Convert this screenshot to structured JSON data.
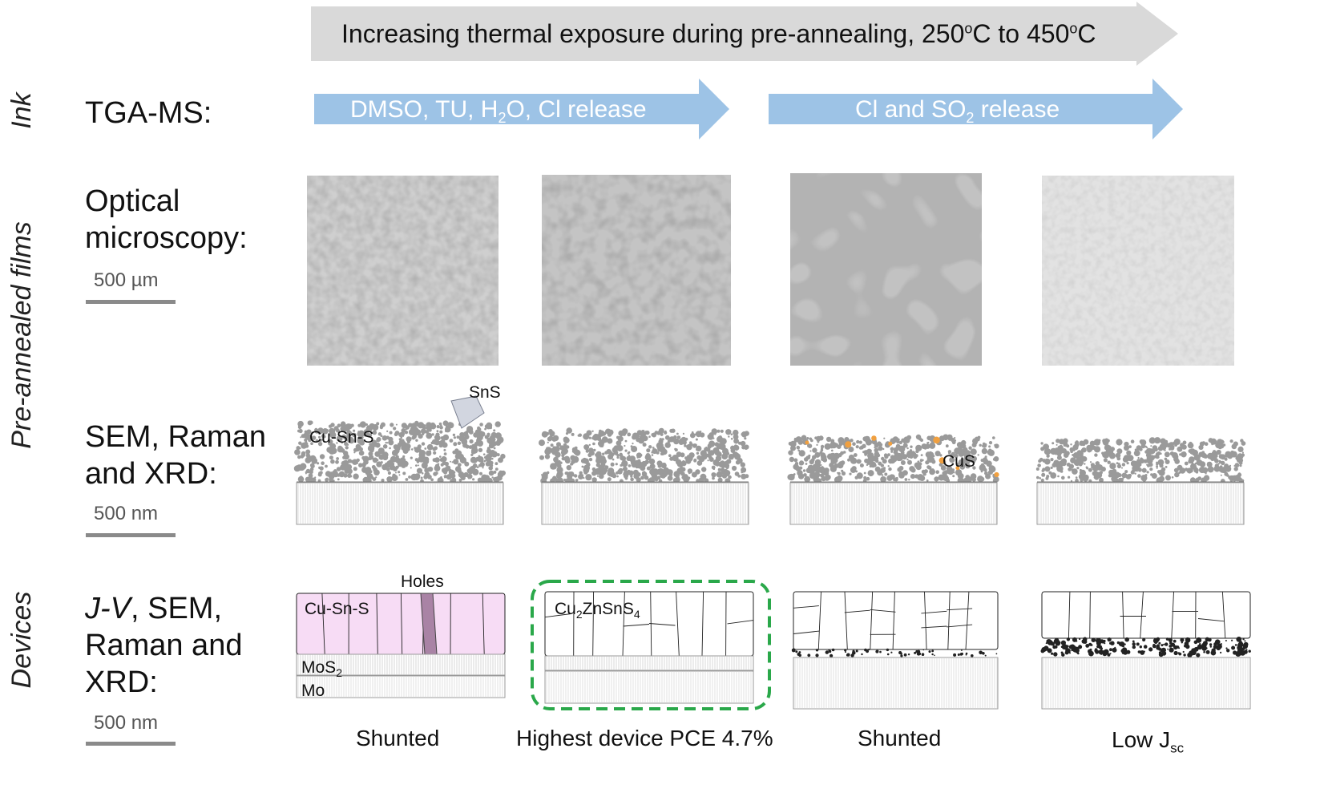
{
  "top_arrow": {
    "text": "Increasing thermal exposure during pre-annealing, 250",
    "sup1": "o",
    "mid": "C to 450",
    "sup2": "o",
    "end": "C"
  },
  "side_labels": {
    "ink": "Ink",
    "films": "Pre-annealed films",
    "devices": "Devices"
  },
  "tga": {
    "label": "TGA-MS:",
    "arrow1": {
      "pre": "DMSO, TU, H",
      "sub": "2",
      "post": "O, Cl release"
    },
    "arrow2": {
      "pre": "Cl and SO",
      "sub": "2",
      "post": " release"
    }
  },
  "optical": {
    "label_line1": "Optical",
    "label_line2": "microscopy:",
    "scale": "500 µm"
  },
  "sem": {
    "label_line1": "SEM, Raman",
    "label_line2": "and XRD:",
    "scale": "500 nm",
    "ann_sns": "SnS",
    "ann_cusns": "Cu-Sn-S",
    "ann_cus": "CuS"
  },
  "devices": {
    "label_italic": "J-V",
    "label_line1_rest": ", SEM,",
    "label_line2": "Raman and",
    "label_line3": "XRD:",
    "scale": "500 nm",
    "ann_holes": "Holes",
    "ann_cusns": "Cu-Sn-S",
    "ann_mos": "MoS",
    "ann_mos_sub": "2",
    "ann_mo": "Mo",
    "czts": {
      "a": "Cu",
      "b": "2",
      "c": "ZnSnS",
      "d": "4"
    }
  },
  "captions": {
    "c1": "Shunted",
    "c2": "Highest device PCE 4.7%",
    "c3": "Shunted",
    "c4_pre": "Low J",
    "c4_sub": "sc"
  },
  "colors": {
    "grey_arrow": "#d9d9d9",
    "blue_arrow": "#9dc3e6",
    "pink": "#f7dcf5",
    "hole": "#a983a5",
    "green_box": "#2aa84a",
    "cus": "#f0a040",
    "particle": "#9a9a9a"
  }
}
